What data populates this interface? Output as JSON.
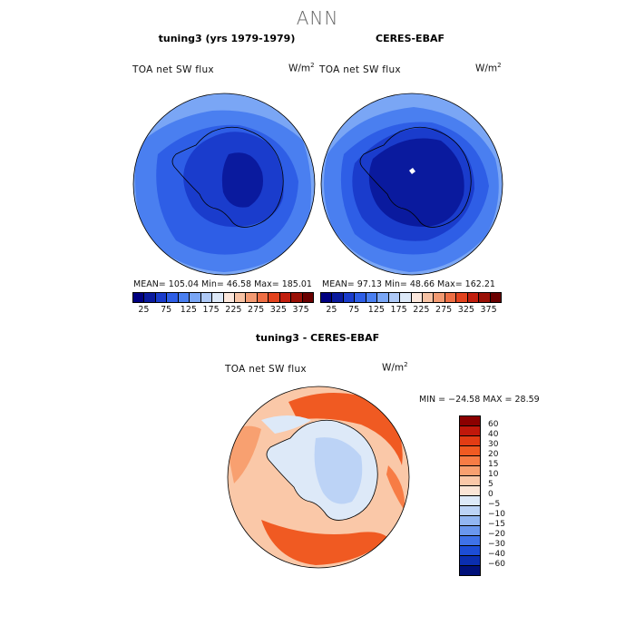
{
  "title": "ANN",
  "panels": {
    "model": {
      "title": "tuning3 (yrs 1979-1979)",
      "variable": "TOA net SW flux",
      "unit": "W/m",
      "unit_sup": "2",
      "stats": "MEAN= 105.04   Min=   46.58   Max= 185.01"
    },
    "obs": {
      "title": "CERES-EBAF",
      "variable": "TOA net SW flux",
      "unit": "W/m",
      "unit_sup": "2",
      "stats": "MEAN=  97.13   Min=   48.66   Max= 162.21"
    },
    "diff": {
      "title": "tuning3 - CERES-EBAF",
      "variable": "TOA net SW flux",
      "unit": "W/m",
      "unit_sup": "2",
      "stats": "MIN = −24.58  MAX =   28.59"
    }
  },
  "abs_colorbar": {
    "colors": [
      "#000080",
      "#0a1a9e",
      "#1a3ccc",
      "#2e5ee6",
      "#4a7ff0",
      "#7aa6f5",
      "#aec9f7",
      "#dde9f8",
      "#fbe7dc",
      "#f7c2a4",
      "#f39a72",
      "#ee6f45",
      "#e3431e",
      "#c21f0e",
      "#9a1006",
      "#6a0000"
    ],
    "ticks": [
      "25",
      "75",
      "125",
      "175",
      "225",
      "275",
      "325",
      "375"
    ]
  },
  "diff_colorbar": {
    "colors": [
      "#8b0000",
      "#c0180b",
      "#e23c14",
      "#f05a22",
      "#f77c45",
      "#f8a070",
      "#fac8a8",
      "#fbe5d6",
      "#dde9f8",
      "#bcd3f6",
      "#92b6f2",
      "#6a97ee",
      "#3f72e8",
      "#1d4dd6",
      "#0b2eb0",
      "#00107a"
    ],
    "ticks": [
      "60",
      "40",
      "30",
      "20",
      "15",
      "10",
      "5",
      "0",
      "−5",
      "−10",
      "−15",
      "−20",
      "−30",
      "−40",
      "−60"
    ]
  }
}
